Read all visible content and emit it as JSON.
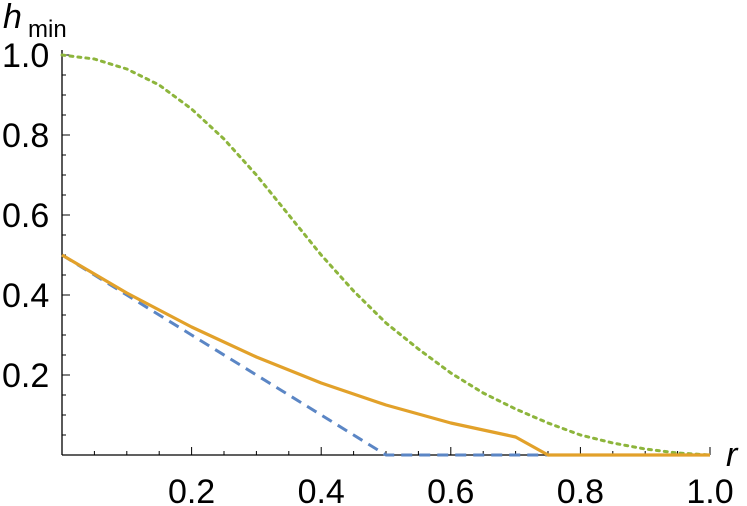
{
  "chart_data": {
    "type": "line",
    "title": "",
    "xlabel": "r",
    "ylabel": {
      "main": "h",
      "sub": "min"
    },
    "xlim": [
      0.0,
      1.0
    ],
    "ylim": [
      0.0,
      1.0
    ],
    "x_ticks": [
      0.2,
      0.4,
      0.6,
      0.8,
      1.0
    ],
    "x_tick_labels": [
      "0.2",
      "0.4",
      "0.6",
      "0.8",
      "1.0"
    ],
    "y_ticks": [
      0.2,
      0.4,
      0.6,
      0.8,
      1.0
    ],
    "y_tick_labels": [
      "0.2",
      "0.4",
      "0.6",
      "0.8",
      "1.0"
    ],
    "grid": false,
    "legend": "none",
    "series": [
      {
        "color": "#5b86c5",
        "style": "dashed",
        "x": [
          0.0,
          0.1,
          0.2,
          0.3,
          0.4,
          0.5,
          0.6,
          0.7,
          0.8,
          0.9,
          1.0
        ],
        "y": [
          0.5,
          0.4,
          0.3,
          0.2,
          0.1,
          0.0,
          0.0,
          0.0,
          0.0,
          0.0,
          0.0
        ]
      },
      {
        "color": "#e2a12a",
        "style": "solid",
        "x": [
          0.0,
          0.1,
          0.2,
          0.3,
          0.4,
          0.5,
          0.6,
          0.7,
          0.75,
          0.8,
          0.9,
          1.0
        ],
        "y": [
          0.5,
          0.405,
          0.32,
          0.245,
          0.18,
          0.125,
          0.08,
          0.045,
          0.0,
          0.0,
          0.0,
          0.0
        ]
      },
      {
        "color": "#8db53c",
        "style": "dotted",
        "x": [
          0.0,
          0.05,
          0.1,
          0.15,
          0.2,
          0.25,
          0.3,
          0.35,
          0.4,
          0.45,
          0.5,
          0.55,
          0.6,
          0.65,
          0.7,
          0.75,
          0.8,
          0.85,
          0.9,
          0.95,
          1.0
        ],
        "y": [
          1.0,
          0.99,
          0.965,
          0.925,
          0.865,
          0.79,
          0.7,
          0.6,
          0.5,
          0.41,
          0.33,
          0.265,
          0.205,
          0.155,
          0.115,
          0.08,
          0.05,
          0.03,
          0.015,
          0.005,
          0.0
        ]
      }
    ]
  }
}
